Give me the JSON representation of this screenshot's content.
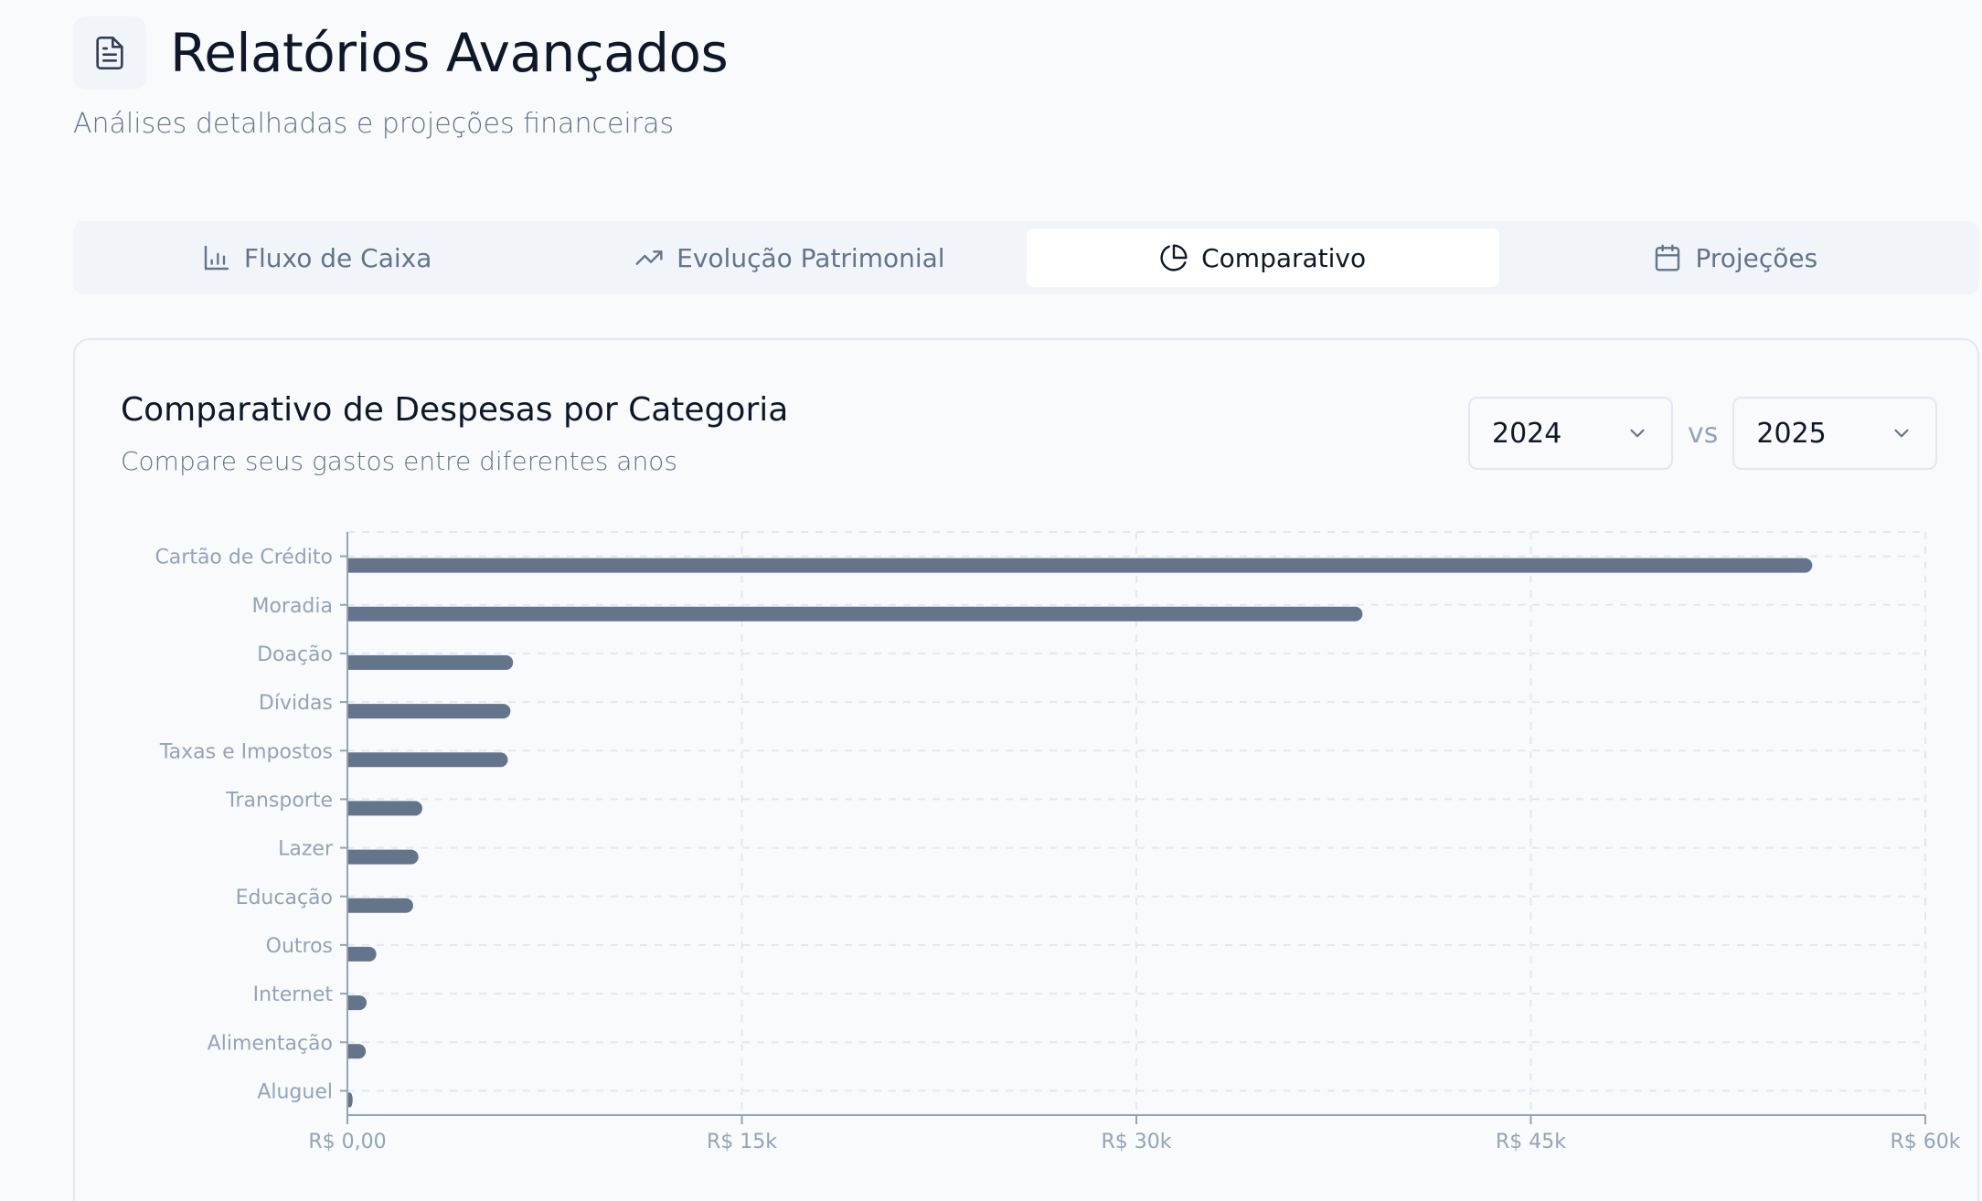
{
  "header": {
    "icon": "file-text-icon",
    "title": "Relatórios Avançados",
    "subtitle": "Análises detalhadas e projeções financeiras"
  },
  "tabs": [
    {
      "label": "Fluxo de Caixa",
      "icon": "bar-chart-icon",
      "active": false
    },
    {
      "label": "Evolução Patrimonial",
      "icon": "trending-up-icon",
      "active": false
    },
    {
      "label": "Comparativo",
      "icon": "pie-chart-icon",
      "active": true
    },
    {
      "label": "Projeções",
      "icon": "calendar-icon",
      "active": false
    }
  ],
  "card": {
    "title": "Comparativo de Despesas por Categoria",
    "subtitle": "Compare seus gastos entre diferentes anos",
    "year_a": "2024",
    "vs_label": "vs",
    "year_b": "2025"
  },
  "colors": {
    "bar": "#64748b",
    "axis": "#94a3b8",
    "grid": "#e2e8f0",
    "background": "#f8fafc",
    "tabbar": "#f1f5f9"
  },
  "chart_data": {
    "type": "bar",
    "orientation": "horizontal",
    "title": "Comparativo de Despesas por Categoria",
    "xlabel": "",
    "ylabel": "",
    "categories": [
      "Cartão de Crédito",
      "Moradia",
      "Doação",
      "Dívidas",
      "Taxas e Impostos",
      "Transporte",
      "Lazer",
      "Educação",
      "Outros",
      "Internet",
      "Alimentação",
      "Aluguel"
    ],
    "series": [
      {
        "name": "2024",
        "values": [
          0,
          0,
          0,
          0,
          0,
          0,
          0,
          0,
          0,
          0,
          0,
          0
        ]
      },
      {
        "name": "2025",
        "values": [
          55700,
          38600,
          6300,
          6200,
          6100,
          2850,
          2700,
          2500,
          1100,
          730,
          700,
          200
        ]
      }
    ],
    "xlim": [
      0,
      60000
    ],
    "xticks": [
      0,
      15000,
      30000,
      45000,
      60000
    ],
    "xtick_labels": [
      "R$ 0,00",
      "R$ 15k",
      "R$ 30k",
      "R$ 45k",
      "R$ 60k"
    ],
    "grid": true,
    "legend": "none visible"
  }
}
